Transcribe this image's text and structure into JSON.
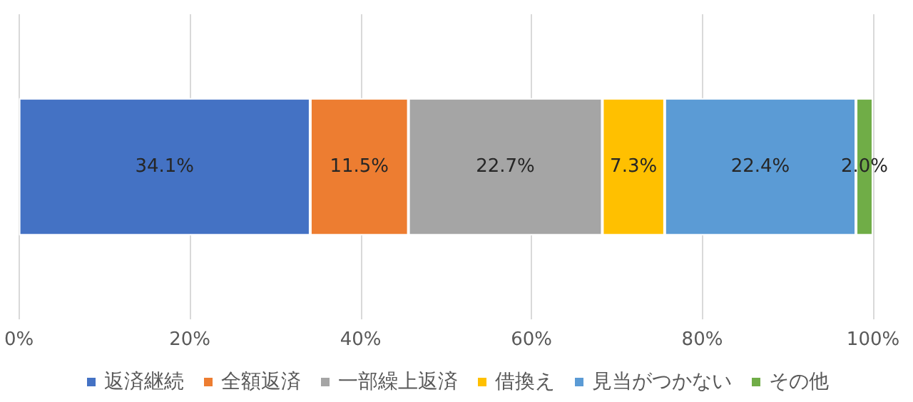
{
  "chart_data": {
    "type": "bar",
    "orientation": "horizontal",
    "stacked": true,
    "data_labels": true,
    "categories": [
      null
    ],
    "series": [
      {
        "name": "返済継続",
        "color": "#4472c4",
        "values": [
          34.1
        ],
        "value_labels": [
          "34.1%"
        ]
      },
      {
        "name": "全額返済",
        "color": "#ed7d31",
        "values": [
          11.5
        ],
        "value_labels": [
          "11.5%"
        ]
      },
      {
        "name": "一部繰上返済",
        "color": "#a5a5a5",
        "values": [
          22.7
        ],
        "value_labels": [
          "22.7%"
        ]
      },
      {
        "name": "借換え",
        "color": "#ffc000",
        "values": [
          7.3
        ],
        "value_labels": [
          "7.3%"
        ]
      },
      {
        "name": "見当がつかない",
        "color": "#5b9bd5",
        "values": [
          22.4
        ],
        "value_labels": [
          "22.4%"
        ]
      },
      {
        "name": "その他",
        "color": "#70ad47",
        "values": [
          2.0
        ],
        "value_labels": [
          "2.0%"
        ]
      }
    ],
    "xlim": [
      0,
      100
    ],
    "xticks": [
      {
        "value": 0,
        "label": "0%"
      },
      {
        "value": 20,
        "label": "20%"
      },
      {
        "value": 40,
        "label": "40%"
      },
      {
        "value": 60,
        "label": "60%"
      },
      {
        "value": 80,
        "label": "80%"
      },
      {
        "value": 100,
        "label": "100%"
      }
    ],
    "grid": "x",
    "legend": "bottom"
  }
}
